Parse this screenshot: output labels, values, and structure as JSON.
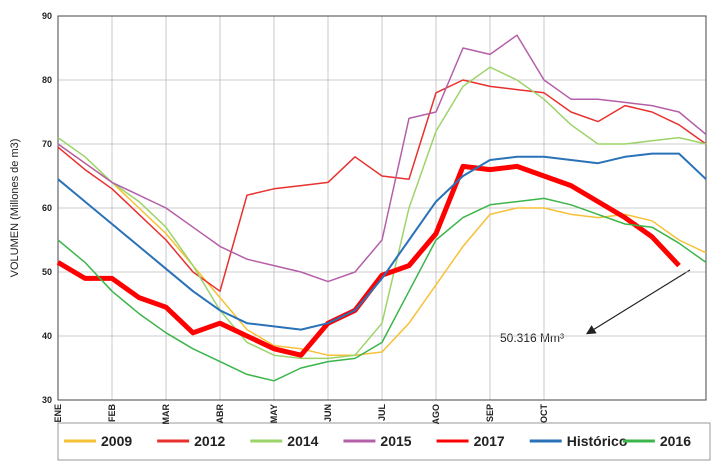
{
  "chart_data": {
    "type": "line",
    "y_label": "VOLUMEN (Millones de m3)",
    "annotation": "50.316 Mm³",
    "xlim": [
      0,
      12
    ],
    "ylim": [
      30,
      90
    ],
    "xticks": [
      {
        "value": 0,
        "label": "ENE"
      },
      {
        "value": 1,
        "label": "FEB"
      },
      {
        "value": 2,
        "label": "MAR"
      },
      {
        "value": 3,
        "label": "ABR"
      },
      {
        "value": 4,
        "label": "MAY"
      },
      {
        "value": 5,
        "label": "JUN"
      },
      {
        "value": 6,
        "label": "JUL"
      },
      {
        "value": 7,
        "label": "AGO"
      },
      {
        "value": 8,
        "label": "SEP"
      },
      {
        "value": 9,
        "label": "OCT"
      }
    ],
    "yticks": [
      30,
      40,
      50,
      60,
      70,
      80,
      90
    ],
    "grid": true,
    "x": [
      0,
      0.5,
      1,
      1.5,
      2,
      2.5,
      3,
      3.5,
      4,
      4.5,
      5,
      5.5,
      6,
      6.5,
      7,
      7.5,
      8,
      8.5,
      9,
      9.5,
      10,
      10.5,
      11,
      11.5,
      12
    ],
    "series": [
      {
        "name": "2009",
        "color": "#f7c137",
        "width": 1.5,
        "values": [
          70,
          67,
          64,
          60,
          56,
          51,
          46,
          41,
          38.5,
          38,
          37,
          37,
          37.5,
          42,
          48,
          54,
          59,
          60,
          60,
          59,
          58.5,
          59,
          58,
          55,
          53
        ]
      },
      {
        "name": "2012",
        "color": "#e8302e",
        "width": 1.5,
        "values": [
          69.5,
          66,
          63,
          59,
          55,
          50,
          47,
          62,
          63,
          63.5,
          64,
          68,
          65,
          64.5,
          78,
          80,
          79,
          78.5,
          78,
          75,
          73.5,
          76,
          75,
          73,
          70
        ]
      },
      {
        "name": "2014",
        "color": "#9dd46a",
        "width": 1.5,
        "values": [
          71,
          68,
          64,
          61,
          57,
          51,
          44,
          39,
          37,
          36.5,
          36.5,
          37,
          42,
          60,
          72,
          79,
          82,
          80,
          77,
          73,
          70,
          70,
          70.5,
          71,
          70
        ]
      },
      {
        "name": "2015",
        "color": "#b45fa8",
        "width": 1.5,
        "values": [
          70,
          67,
          64,
          62,
          60,
          57,
          54,
          52,
          51,
          50,
          48.5,
          50,
          55,
          74,
          75,
          85,
          84,
          87,
          80,
          77,
          77,
          76.5,
          76,
          75,
          71.5
        ]
      },
      {
        "name": "2017",
        "color": "#ff0000",
        "width": 5,
        "values": [
          51.5,
          49,
          49,
          46,
          44.5,
          40.5,
          42,
          40,
          38,
          37,
          42,
          44,
          49.5,
          51,
          56,
          66.5,
          66,
          66.5,
          65,
          63.5,
          61,
          58.5,
          55.5,
          51,
          null
        ]
      },
      {
        "name": "Histórico",
        "color": "#2a72b8",
        "width": 2,
        "values": [
          64.5,
          61,
          57.5,
          54,
          50.5,
          47,
          44,
          42,
          41.5,
          41,
          42,
          44,
          49,
          55,
          61,
          65,
          67.5,
          68,
          68,
          67.5,
          67,
          68,
          68.5,
          68.5,
          64.5
        ]
      },
      {
        "name": "2016",
        "color": "#3cb54a",
        "width": 1.5,
        "values": [
          55,
          51.5,
          47,
          43.5,
          40.5,
          38,
          36,
          34,
          33,
          35,
          36,
          36.5,
          39,
          47,
          55,
          58.5,
          60.5,
          61,
          61.5,
          60.5,
          59,
          57.5,
          57,
          54.5,
          51.5
        ]
      }
    ]
  }
}
